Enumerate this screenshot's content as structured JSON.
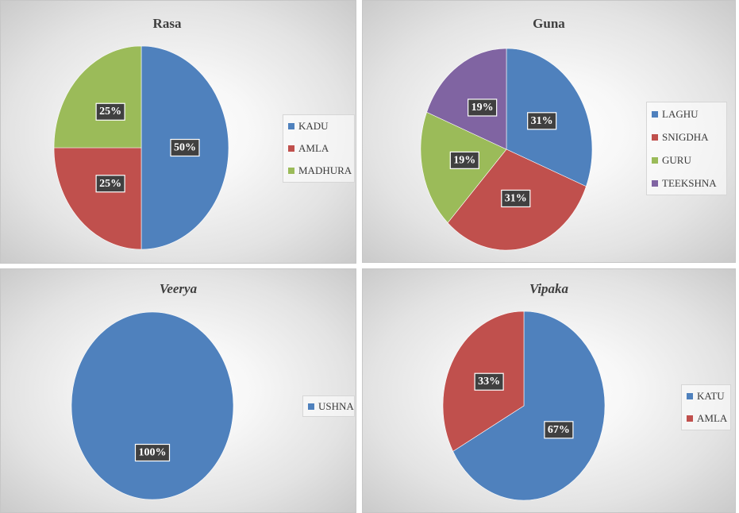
{
  "chart_data": [
    {
      "type": "pie",
      "title": "Rasa",
      "categories": [
        "KADU",
        "AMLA",
        "MADHURA"
      ],
      "values": [
        50,
        25,
        25
      ],
      "data_labels": [
        "50%",
        "25%",
        "25%"
      ],
      "colors": [
        "#4f81bd",
        "#c0504d",
        "#9bbb59"
      ],
      "legend": "right"
    },
    {
      "type": "pie",
      "title": "Guna",
      "categories": [
        "LAGHU",
        "SNIGDHA",
        "GURU",
        "TEEKSHNA"
      ],
      "values": [
        31,
        31,
        19,
        19
      ],
      "data_labels": [
        "31%",
        "31%",
        "19%",
        "19%"
      ],
      "colors": [
        "#4f81bd",
        "#c0504d",
        "#9bbb59",
        "#8064a2"
      ],
      "legend": "right"
    },
    {
      "type": "pie",
      "title": "Veerya",
      "categories": [
        "USHNA"
      ],
      "values": [
        100
      ],
      "data_labels": [
        "100%"
      ],
      "colors": [
        "#4f81bd"
      ],
      "legend": "right"
    },
    {
      "type": "pie",
      "title": "Vipaka",
      "categories": [
        "KATU",
        "AMLA"
      ],
      "values": [
        67,
        33
      ],
      "data_labels": [
        "67%",
        "33%"
      ],
      "colors": [
        "#4f81bd",
        "#c0504d"
      ],
      "legend": "right"
    }
  ]
}
